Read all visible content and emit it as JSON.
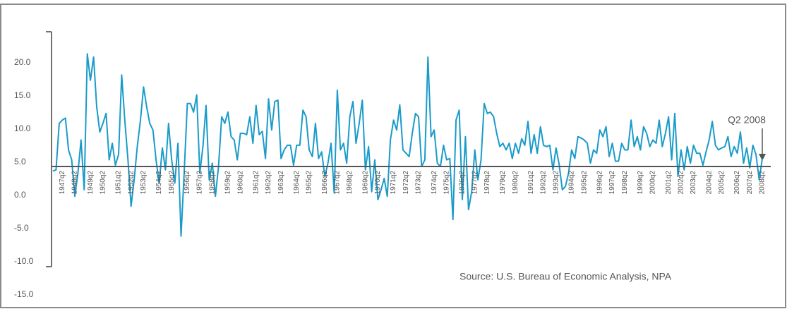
{
  "chart_data": {
    "type": "line",
    "categories": [
      null,
      null,
      null,
      "1947q2",
      null,
      null,
      null,
      "1948q2",
      null,
      null,
      null,
      null,
      "1949q2",
      null,
      null,
      null,
      "1950q2",
      null,
      null,
      null,
      null,
      "1951q2",
      null,
      null,
      null,
      "1952q2",
      null,
      null,
      null,
      "1953q2",
      null,
      null,
      null,
      null,
      "1954q2",
      null,
      null,
      null,
      "1955q2",
      null,
      null,
      null,
      null,
      "1956q2",
      null,
      null,
      null,
      "1957q2",
      null,
      null,
      null,
      "1958q2",
      null,
      null,
      null,
      null,
      "1959q2",
      null,
      null,
      null,
      "1960q2",
      null,
      null,
      null,
      null,
      "1961q2",
      null,
      null,
      null,
      "1962q2",
      null,
      null,
      null,
      "1963q2",
      null,
      null,
      null,
      null,
      "1964q2",
      null,
      null,
      null,
      "1965q2",
      null,
      null,
      null,
      null,
      "1966q2",
      null,
      null,
      null,
      "1967q2",
      null,
      null,
      null,
      "1968q2",
      null,
      null,
      null,
      null,
      "1969q2",
      null,
      null,
      null,
      "1970q2",
      null,
      null,
      null,
      null,
      "1971q2",
      null,
      null,
      null,
      "1972q2",
      null,
      null,
      null,
      "1973q2",
      null,
      null,
      null,
      null,
      "1974q2",
      null,
      null,
      null,
      "1975q2",
      null,
      null,
      null,
      null,
      "1976q2",
      null,
      null,
      null,
      "1977q2",
      null,
      null,
      null,
      "1978q2",
      null,
      null,
      null,
      null,
      "1979q2",
      null,
      null,
      null,
      "1980q2",
      null,
      null,
      null,
      null,
      "1991q2",
      null,
      null,
      null,
      "1992q2",
      null,
      null,
      null,
      "1993q2",
      null,
      null,
      null,
      null,
      "1994q2",
      null,
      null,
      null,
      "1995q2",
      null,
      null,
      null,
      null,
      "1996q2",
      null,
      null,
      null,
      "1997q2",
      null,
      null,
      null,
      "1998q2",
      null,
      null,
      null,
      null,
      "1999q2",
      null,
      null,
      null,
      "2000q2",
      null,
      null,
      null,
      null,
      "2001q2",
      null,
      null,
      null,
      "2002q2",
      null,
      null,
      null,
      "2003q2",
      null,
      null,
      null,
      null,
      "2004q2",
      null,
      null,
      null,
      "2005q2",
      null,
      null,
      null,
      null,
      "2006q2",
      null,
      null,
      null,
      "2007q2",
      null,
      null,
      null,
      "2008q2"
    ],
    "series": [
      {
        "color": "#1a9bc9",
        "values": [
          4.3,
          4.5,
          11.5,
          12,
          12.3,
          7.5,
          6,
          0.5,
          4,
          9,
          1.5,
          22,
          18,
          21.5,
          14,
          10.2,
          11.5,
          13,
          6,
          8.5,
          5.2,
          6.8,
          18.8,
          12,
          6,
          -1,
          3,
          8,
          12,
          17,
          14,
          11.5,
          10.5,
          6,
          2.5,
          7.8,
          4.5,
          11.5,
          6,
          2.5,
          8.5,
          -5.5,
          4,
          14.5,
          14.5,
          13.2,
          15.8,
          4,
          8,
          14.2,
          3,
          5.5,
          0.5,
          5,
          12.5,
          11.5,
          13.2,
          9.5,
          9,
          6,
          10,
          10,
          9.8,
          12.5,
          8.5,
          14.2,
          9.8,
          10.3,
          6.2,
          15.2,
          10.5,
          14.8,
          15,
          6.2,
          7.5,
          8.2,
          8.2,
          5.2,
          8.2,
          8.2,
          13.5,
          12.5,
          7.5,
          6.5,
          11.5,
          6.2,
          7.2,
          3.5,
          5.5,
          8.5,
          1,
          16.5,
          7.5,
          8.5,
          5.5,
          12.5,
          14.8,
          8.5,
          11.5,
          15,
          4.5,
          8,
          1.2,
          6,
          0,
          1.5,
          3.2,
          0.5,
          9,
          12,
          10.5,
          14.3,
          7.5,
          7,
          6.5,
          10,
          13,
          12.5,
          5,
          6,
          21.5,
          9.5,
          10.5,
          5.5,
          5,
          8.2,
          6,
          6.2,
          -3,
          12,
          13.5,
          0,
          9.5,
          -1.5,
          1.2,
          7.5,
          3,
          6,
          14.5,
          13,
          13.2,
          12.5,
          10,
          8,
          8.5,
          7.5,
          8.5,
          6.2,
          8.5,
          7,
          9.2,
          8.2,
          11.8,
          7,
          9.8,
          7,
          11,
          8.2,
          8,
          8.2,
          4.5,
          7.8,
          5.3,
          1.5,
          2,
          4,
          7.5,
          6.2,
          9.5,
          9.3,
          9,
          8.5,
          5.5,
          7.5,
          7,
          10.5,
          9.5,
          11,
          6.5,
          8.5,
          5.8,
          5.8,
          8.5,
          7.5,
          7.5,
          12,
          8,
          9.5,
          7.5,
          11,
          10,
          8,
          9,
          8.5,
          12,
          8,
          10,
          12.5,
          6,
          13,
          3.5,
          7.5,
          4.5,
          8,
          5.5,
          8.2,
          7,
          7,
          5.2,
          7.2,
          9,
          11.8,
          8.2,
          7.5,
          7.8,
          8,
          9.5,
          6.5,
          8,
          7,
          10.2,
          5.5,
          7.8,
          4.8,
          8.2,
          6.8,
          3,
          6.2
        ]
      }
    ],
    "ylim": [
      -15,
      25
    ],
    "yticks": [
      {
        "value": -15,
        "label": "-15.0"
      },
      {
        "value": -10,
        "label": "-10.0"
      },
      {
        "value": -5,
        "label": "-5.0"
      },
      {
        "value": 0,
        "label": "0.0"
      },
      {
        "value": 5,
        "label": "5.0"
      },
      {
        "value": 10,
        "label": "10.0"
      },
      {
        "value": 15,
        "label": "15.0"
      },
      {
        "value": 20,
        "label": "20.0"
      }
    ],
    "grid": false,
    "annotation": "Q2 2008",
    "source": "Source: U.S. Bureau of Economic Analysis, NPA"
  }
}
